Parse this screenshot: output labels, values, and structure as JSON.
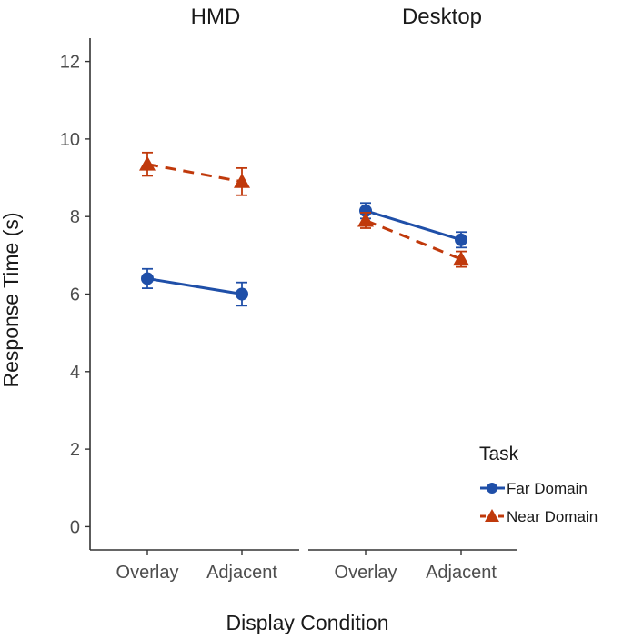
{
  "chart_data": {
    "type": "line",
    "facet_by": "Display",
    "panels": [
      "HMD",
      "Desktop"
    ],
    "categories": [
      "Overlay",
      "Adjacent"
    ],
    "xlabel": "Display Condition",
    "ylabel": "Response Time (s)",
    "ylim": [
      -0.6,
      12.6
    ],
    "yticks": [
      "0",
      "2",
      "4",
      "6",
      "8",
      "10",
      "12"
    ],
    "grid": false,
    "legend": {
      "title": "Task",
      "position": "right"
    },
    "series": [
      {
        "name": "Far Domain",
        "color": "#1f4fa8",
        "marker": "circle",
        "line": "solid",
        "values": {
          "HMD": [
            6.4,
            6.0
          ],
          "Desktop": [
            8.15,
            7.4
          ]
        },
        "errors": {
          "HMD": [
            0.25,
            0.3
          ],
          "Desktop": [
            0.2,
            0.2
          ]
        }
      },
      {
        "name": "Near Domain",
        "color": "#c0390b",
        "marker": "triangle",
        "line": "dashed",
        "values": {
          "HMD": [
            9.35,
            8.9
          ],
          "Desktop": [
            7.9,
            6.9
          ]
        },
        "errors": {
          "HMD": [
            0.3,
            0.35
          ],
          "Desktop": [
            0.2,
            0.2
          ]
        }
      }
    ]
  }
}
